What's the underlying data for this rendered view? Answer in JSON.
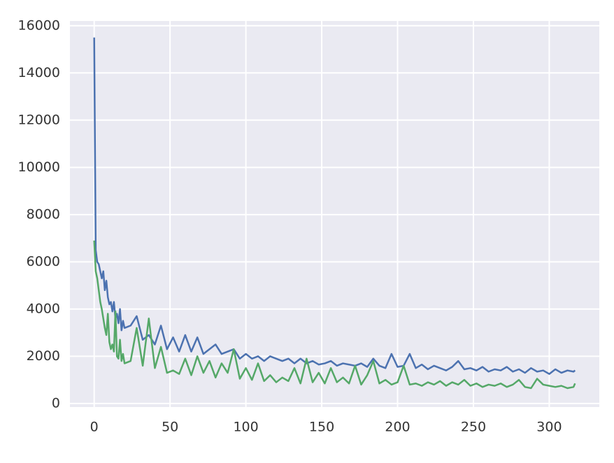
{
  "chart_data": {
    "type": "line",
    "x": [
      0,
      1,
      2,
      3,
      4,
      5,
      6,
      7,
      8,
      9,
      10,
      11,
      12,
      13,
      14,
      15,
      16,
      17,
      18,
      19,
      20,
      24,
      28,
      32,
      36,
      40,
      44,
      48,
      52,
      56,
      60,
      64,
      68,
      72,
      76,
      80,
      84,
      88,
      92,
      96,
      100,
      104,
      108,
      112,
      116,
      120,
      124,
      128,
      132,
      136,
      140,
      144,
      148,
      152,
      156,
      160,
      164,
      168,
      172,
      176,
      180,
      184,
      188,
      192,
      196,
      200,
      204,
      208,
      212,
      216,
      220,
      224,
      228,
      232,
      236,
      240,
      244,
      248,
      252,
      256,
      260,
      264,
      268,
      272,
      276,
      280,
      284,
      288,
      292,
      296,
      300,
      304,
      308,
      312,
      316,
      317
    ],
    "series": [
      {
        "color": "#4c72b0",
        "values": [
          15500,
          6500,
          6000,
          5900,
          5600,
          5300,
          5600,
          4800,
          5200,
          4500,
          4200,
          4300,
          3900,
          4300,
          3600,
          3800,
          3400,
          4000,
          3100,
          3500,
          3200,
          3300,
          3700,
          2700,
          2900,
          2500,
          3300,
          2300,
          2800,
          2200,
          2900,
          2200,
          2800,
          2100,
          2300,
          2500,
          2100,
          2200,
          2300,
          1900,
          2100,
          1900,
          2000,
          1800,
          2000,
          1900,
          1800,
          1900,
          1700,
          1900,
          1700,
          1800,
          1650,
          1700,
          1800,
          1600,
          1700,
          1650,
          1600,
          1700,
          1550,
          1900,
          1600,
          1500,
          2100,
          1550,
          1600,
          2100,
          1500,
          1650,
          1450,
          1600,
          1500,
          1400,
          1550,
          1800,
          1450,
          1500,
          1400,
          1550,
          1350,
          1450,
          1400,
          1550,
          1350,
          1450,
          1300,
          1500,
          1350,
          1400,
          1250,
          1450,
          1300,
          1400,
          1350,
          1400
        ]
      },
      {
        "color": "#55a868",
        "values": [
          6900,
          5600,
          5300,
          4800,
          4300,
          4000,
          3600,
          3200,
          2900,
          3800,
          2600,
          2300,
          2500,
          2200,
          3900,
          2000,
          1900,
          2700,
          1800,
          2100,
          1700,
          1800,
          3200,
          1600,
          3600,
          1500,
          2400,
          1300,
          1400,
          1250,
          1900,
          1200,
          2000,
          1300,
          1800,
          1100,
          1700,
          1300,
          2300,
          1050,
          1500,
          1000,
          1700,
          950,
          1200,
          900,
          1100,
          950,
          1500,
          850,
          1900,
          900,
          1300,
          850,
          1500,
          900,
          1100,
          850,
          1600,
          800,
          1200,
          1800,
          850,
          1000,
          800,
          900,
          1600,
          800,
          850,
          750,
          900,
          800,
          950,
          750,
          900,
          800,
          1000,
          750,
          850,
          700,
          800,
          750,
          850,
          700,
          800,
          1000,
          700,
          650,
          1050,
          800,
          750,
          700,
          750,
          650,
          700,
          850
        ]
      }
    ],
    "xlim": [
      -16,
      333
    ],
    "ylim": [
      -150,
      16200
    ],
    "xticks": [
      0,
      50,
      100,
      150,
      200,
      250,
      300
    ],
    "yticks": [
      0,
      2000,
      4000,
      6000,
      8000,
      10000,
      12000,
      14000,
      16000
    ],
    "grid": true
  }
}
